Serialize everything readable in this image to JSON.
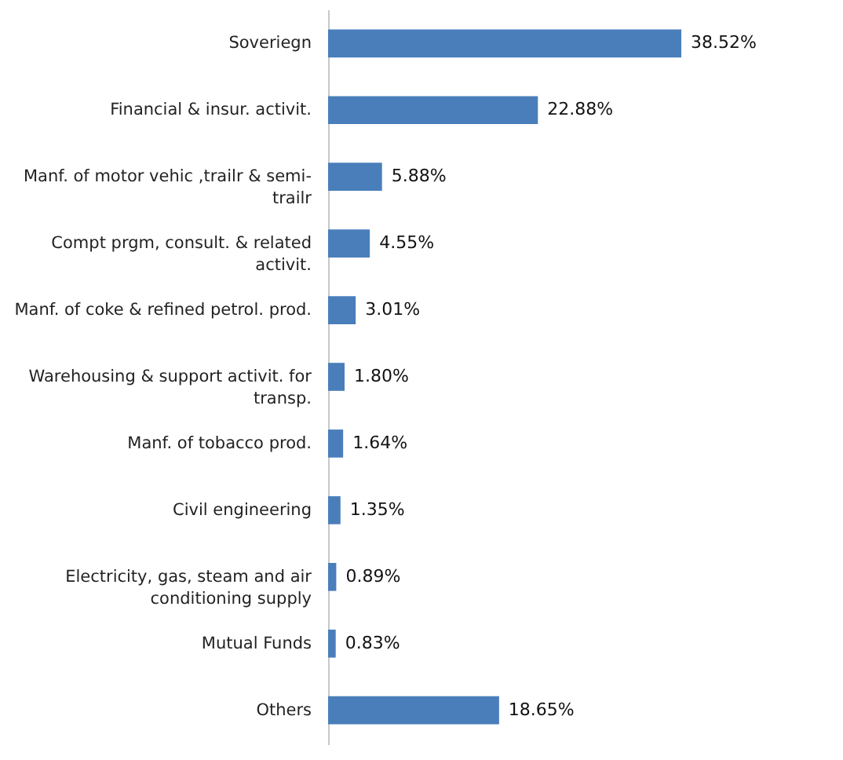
{
  "chart_data": {
    "type": "bar",
    "orientation": "horizontal",
    "data_labels": true,
    "color": "#4a7ebb",
    "categories": [
      "Soveriegn",
      "Financial & insur. activit.",
      "Manf. of motor vehic ,trailr & semi-trailr",
      "Compt prgm, consult. & related activit.",
      "Manf. of coke & refined petrol. prod.",
      "Warehousing & support activit. for transp.",
      "Manf. of tobacco prod.",
      "Civil engineering",
      "Electricity, gas, steam and air conditioning supply",
      "Mutual Funds",
      "Others"
    ],
    "values": [
      38.52,
      22.88,
      5.88,
      4.55,
      3.01,
      1.8,
      1.64,
      1.35,
      0.89,
      0.83,
      18.65
    ],
    "value_labels": [
      "38.52%",
      "22.88%",
      "5.88%",
      "4.55%",
      "3.01%",
      "1.80%",
      "1.64%",
      "1.35%",
      "0.89%",
      "0.83%",
      "18.65%"
    ]
  }
}
